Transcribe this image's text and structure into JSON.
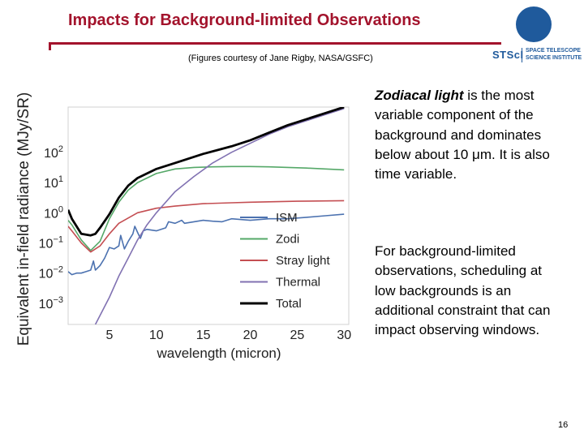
{
  "slide": {
    "title": "Impacts for Background-limited Observations",
    "credit": "(Figures courtesy of Jane Rigby, NASA/GSFC)",
    "logo": {
      "wordmark": "STScI",
      "subtitle_line1": "SPACE TELESCOPE",
      "subtitle_line2": "SCIENCE INSTITUTE",
      "brand_color": "#1f5a9c"
    },
    "accent_color": "#a3132c",
    "page_number": "16",
    "paragraph1": {
      "emph": "Zodiacal light",
      "rest_a": " is the most variable component of the background and dominates below about 10 ",
      "mu": "μ",
      "rest_b": "m.  It is also time variable."
    },
    "paragraph2": "For background-limited observations, scheduling at low backgrounds is an additional constraint that can impact observing windows."
  },
  "chart_data": {
    "type": "line",
    "title": "",
    "xlabel": "wavelength (micron)",
    "ylabel": "Equivalent in-field radiance (MJy/SR)",
    "xlim": [
      0.6,
      30.5
    ],
    "ylim": [
      -3.7,
      3.5
    ],
    "yscale": "log",
    "xticks": [
      5,
      10,
      15,
      20,
      25,
      30
    ],
    "yticks": [
      {
        "exp": -3,
        "label": "10",
        "sup": "−3"
      },
      {
        "exp": -2,
        "label": "10",
        "sup": "−2"
      },
      {
        "exp": -1,
        "label": "10",
        "sup": "−1"
      },
      {
        "exp": 0,
        "label": "10",
        "sup": "0"
      },
      {
        "exp": 1,
        "label": "10",
        "sup": "1"
      },
      {
        "exp": 2,
        "label": "10",
        "sup": "2"
      }
    ],
    "legend_position": "center-right",
    "grid": false,
    "series": [
      {
        "name": "ISM",
        "color": "#4c72b0",
        "x": [
          0.6,
          1,
          1.5,
          2,
          2.5,
          3,
          3.3,
          3.5,
          4,
          4.5,
          5,
          5.5,
          6,
          6.2,
          6.6,
          7,
          7.5,
          7.7,
          8,
          8.3,
          8.6,
          9,
          10,
          11,
          11.3,
          12,
          12.7,
          13,
          14,
          15,
          16,
          17,
          18,
          20,
          22,
          24,
          26,
          28,
          30
        ],
        "log10y": [
          -1.95,
          -2.05,
          -2.0,
          -2.0,
          -1.95,
          -1.9,
          -1.6,
          -1.9,
          -1.75,
          -1.5,
          -1.15,
          -1.2,
          -1.1,
          -0.75,
          -1.2,
          -0.95,
          -0.7,
          -0.45,
          -0.65,
          -0.85,
          -0.6,
          -0.55,
          -0.6,
          -0.5,
          -0.3,
          -0.35,
          -0.25,
          -0.35,
          -0.3,
          -0.25,
          -0.28,
          -0.3,
          -0.2,
          -0.25,
          -0.2,
          -0.2,
          -0.15,
          -0.1,
          -0.05
        ]
      },
      {
        "name": "Zodi",
        "color": "#55a868",
        "x": [
          0.6,
          1,
          2,
          3,
          4,
          5,
          6,
          7,
          8,
          10,
          12,
          14,
          16,
          18,
          20,
          22,
          24,
          26,
          28,
          30
        ],
        "log10y": [
          -0.25,
          -0.4,
          -0.9,
          -1.25,
          -0.95,
          -0.2,
          0.35,
          0.75,
          1.0,
          1.3,
          1.45,
          1.5,
          1.52,
          1.53,
          1.53,
          1.52,
          1.5,
          1.48,
          1.45,
          1.42
        ]
      },
      {
        "name": "Stray light",
        "color": "#c44e52",
        "x": [
          0.6,
          1,
          2,
          3,
          4,
          5,
          6,
          8,
          10,
          12,
          15,
          18,
          20,
          25,
          30
        ],
        "log10y": [
          -0.45,
          -0.6,
          -1.0,
          -1.3,
          -1.1,
          -0.7,
          -0.35,
          0.0,
          0.15,
          0.22,
          0.3,
          0.33,
          0.35,
          0.38,
          0.4
        ]
      },
      {
        "name": "Thermal",
        "color": "#8172b2",
        "x": [
          3.5,
          5,
          6,
          7,
          8,
          9,
          10,
          12,
          14,
          16,
          18,
          20,
          22,
          24,
          26,
          28,
          30
        ],
        "log10y": [
          -3.7,
          -2.8,
          -2.1,
          -1.5,
          -0.9,
          -0.4,
          0.0,
          0.7,
          1.2,
          1.65,
          2.0,
          2.3,
          2.6,
          2.85,
          3.05,
          3.25,
          3.45
        ]
      },
      {
        "name": "Total",
        "color": "#000000",
        "x": [
          0.6,
          1,
          2,
          3,
          3.5,
          4,
          5,
          6,
          7,
          8,
          10,
          12,
          15,
          18,
          20,
          22,
          24,
          26,
          28,
          30
        ],
        "log10y": [
          0.1,
          -0.2,
          -0.7,
          -0.75,
          -0.7,
          -0.5,
          -0.05,
          0.5,
          0.9,
          1.15,
          1.45,
          1.65,
          1.95,
          2.2,
          2.4,
          2.65,
          2.9,
          3.1,
          3.3,
          3.5
        ]
      }
    ]
  }
}
